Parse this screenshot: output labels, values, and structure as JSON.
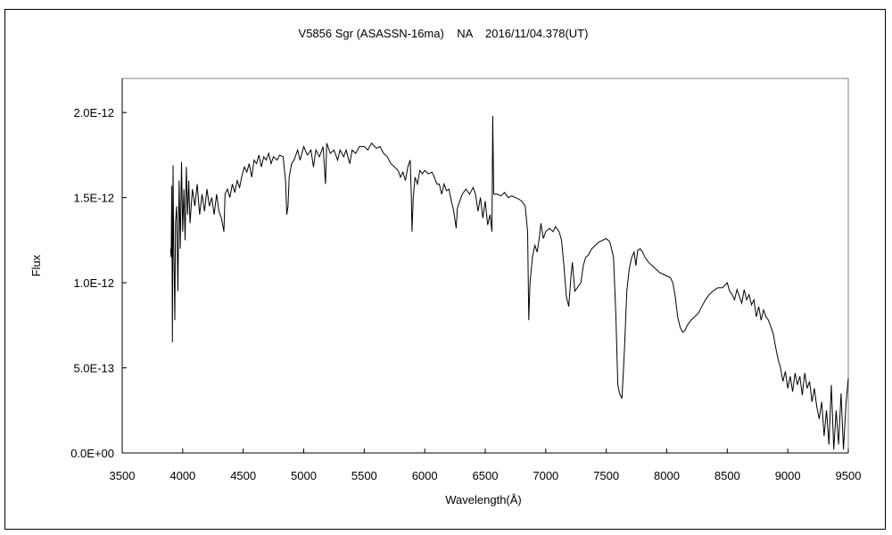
{
  "chart_data": {
    "type": "line",
    "title": "V5856 Sgr (ASASSN-16ma)    NA    2016/11/04.378(UT)",
    "xlabel": "Wavelength(Å)",
    "ylabel": "Flux",
    "xlim": [
      3500,
      9500
    ],
    "ylim": [
      0,
      2.2e-12
    ],
    "x_ticks": [
      3500,
      4000,
      4500,
      5000,
      5500,
      6000,
      6500,
      7000,
      7500,
      8000,
      8500,
      9000,
      9500
    ],
    "x_tick_labels": [
      "3500",
      "4000",
      "4500",
      "5000",
      "5500",
      "6000",
      "6500",
      "7000",
      "7500",
      "8000",
      "8500",
      "9000",
      "9500"
    ],
    "y_ticks": [
      0,
      5e-13,
      1e-12,
      1.5e-12,
      2e-12
    ],
    "y_tick_labels": [
      "0.0E+00",
      "5.0E-13",
      "1.0E-12",
      "1.5E-12",
      "2.0E-12"
    ],
    "grid": false,
    "legend": "none",
    "line_color": "#000000",
    "series": [
      {
        "points": [
          [
            3900,
            1.2e-12
          ],
          [
            3905,
            1.15e-12
          ],
          [
            3910,
            1.57e-12
          ],
          [
            3915,
            6.5e-13
          ],
          [
            3920,
            1.69e-12
          ],
          [
            3925,
            1.25e-12
          ],
          [
            3930,
            1.05e-12
          ],
          [
            3935,
            7.8e-13
          ],
          [
            3940,
            1.35e-12
          ],
          [
            3950,
            1.45e-12
          ],
          [
            3960,
            9.5e-13
          ],
          [
            3970,
            1.6e-12
          ],
          [
            3980,
            1.2e-12
          ],
          [
            3990,
            1.71e-12
          ],
          [
            4000,
            1.3e-12
          ],
          [
            4010,
            1.55e-12
          ],
          [
            4020,
            1.25e-12
          ],
          [
            4030,
            1.68e-12
          ],
          [
            4040,
            1.4e-12
          ],
          [
            4050,
            1.6e-12
          ],
          [
            4060,
            1.35e-12
          ],
          [
            4080,
            1.55e-12
          ],
          [
            4100,
            1.45e-12
          ],
          [
            4120,
            1.58e-12
          ],
          [
            4140,
            1.4e-12
          ],
          [
            4160,
            1.52e-12
          ],
          [
            4180,
            1.42e-12
          ],
          [
            4200,
            1.55e-12
          ],
          [
            4220,
            1.45e-12
          ],
          [
            4240,
            1.5e-12
          ],
          [
            4260,
            1.4e-12
          ],
          [
            4280,
            1.52e-12
          ],
          [
            4300,
            1.42e-12
          ],
          [
            4320,
            1.38e-12
          ],
          [
            4340,
            1.3e-12
          ],
          [
            4350,
            1.52e-12
          ],
          [
            4370,
            1.55e-12
          ],
          [
            4390,
            1.5e-12
          ],
          [
            4410,
            1.58e-12
          ],
          [
            4430,
            1.53e-12
          ],
          [
            4450,
            1.6e-12
          ],
          [
            4470,
            1.56e-12
          ],
          [
            4490,
            1.63e-12
          ],
          [
            4510,
            1.68e-12
          ],
          [
            4530,
            1.65e-12
          ],
          [
            4550,
            1.7e-12
          ],
          [
            4570,
            1.62e-12
          ],
          [
            4590,
            1.72e-12
          ],
          [
            4610,
            1.7e-12
          ],
          [
            4630,
            1.75e-12
          ],
          [
            4650,
            1.68e-12
          ],
          [
            4670,
            1.74e-12
          ],
          [
            4690,
            1.72e-12
          ],
          [
            4710,
            1.76e-12
          ],
          [
            4730,
            1.7e-12
          ],
          [
            4750,
            1.74e-12
          ],
          [
            4780,
            1.72e-12
          ],
          [
            4800,
            1.75e-12
          ],
          [
            4830,
            1.74e-12
          ],
          [
            4850,
            1.6e-12
          ],
          [
            4860,
            1.4e-12
          ],
          [
            4870,
            1.45e-12
          ],
          [
            4880,
            1.62e-12
          ],
          [
            4900,
            1.7e-12
          ],
          [
            4920,
            1.72e-12
          ],
          [
            4950,
            1.78e-12
          ],
          [
            4970,
            1.72e-12
          ],
          [
            5000,
            1.8e-12
          ],
          [
            5030,
            1.75e-12
          ],
          [
            5060,
            1.78e-12
          ],
          [
            5080,
            1.68e-12
          ],
          [
            5100,
            1.78e-12
          ],
          [
            5130,
            1.74e-12
          ],
          [
            5160,
            1.8e-12
          ],
          [
            5180,
            1.58e-12
          ],
          [
            5190,
            1.82e-12
          ],
          [
            5220,
            1.76e-12
          ],
          [
            5250,
            1.78e-12
          ],
          [
            5280,
            1.72e-12
          ],
          [
            5300,
            1.78e-12
          ],
          [
            5330,
            1.74e-12
          ],
          [
            5350,
            1.78e-12
          ],
          [
            5380,
            1.7e-12
          ],
          [
            5400,
            1.78e-12
          ],
          [
            5430,
            1.76e-12
          ],
          [
            5460,
            1.8e-12
          ],
          [
            5500,
            1.8e-12
          ],
          [
            5530,
            1.78e-12
          ],
          [
            5560,
            1.82e-12
          ],
          [
            5600,
            1.79e-12
          ],
          [
            5630,
            1.8e-12
          ],
          [
            5660,
            1.76e-12
          ],
          [
            5690,
            1.74e-12
          ],
          [
            5720,
            1.7e-12
          ],
          [
            5750,
            1.68e-12
          ],
          [
            5780,
            1.66e-12
          ],
          [
            5800,
            1.62e-12
          ],
          [
            5820,
            1.65e-12
          ],
          [
            5840,
            1.6e-12
          ],
          [
            5860,
            1.68e-12
          ],
          [
            5880,
            1.72e-12
          ],
          [
            5890,
            1.5e-12
          ],
          [
            5895,
            1.3e-12
          ],
          [
            5905,
            1.5e-12
          ],
          [
            5920,
            1.62e-12
          ],
          [
            5940,
            1.58e-12
          ],
          [
            5960,
            1.66e-12
          ],
          [
            5980,
            1.64e-12
          ],
          [
            6000,
            1.66e-12
          ],
          [
            6030,
            1.64e-12
          ],
          [
            6060,
            1.65e-12
          ],
          [
            6080,
            1.62e-12
          ],
          [
            6100,
            1.58e-12
          ],
          [
            6120,
            1.58e-12
          ],
          [
            6140,
            1.52e-12
          ],
          [
            6160,
            1.58e-12
          ],
          [
            6180,
            1.54e-12
          ],
          [
            6200,
            1.55e-12
          ],
          [
            6220,
            1.48e-12
          ],
          [
            6240,
            1.42e-12
          ],
          [
            6260,
            1.32e-12
          ],
          [
            6270,
            1.44e-12
          ],
          [
            6290,
            1.48e-12
          ],
          [
            6310,
            1.52e-12
          ],
          [
            6340,
            1.55e-12
          ],
          [
            6370,
            1.52e-12
          ],
          [
            6400,
            1.56e-12
          ],
          [
            6420,
            1.52e-12
          ],
          [
            6440,
            1.42e-12
          ],
          [
            6460,
            1.5e-12
          ],
          [
            6480,
            1.38e-12
          ],
          [
            6500,
            1.48e-12
          ],
          [
            6520,
            1.34e-12
          ],
          [
            6540,
            1.4e-12
          ],
          [
            6555,
            1.3e-12
          ],
          [
            6562,
            1.98e-12
          ],
          [
            6570,
            1.52e-12
          ],
          [
            6600,
            1.52e-12
          ],
          [
            6630,
            1.51e-12
          ],
          [
            6660,
            1.53e-12
          ],
          [
            6690,
            1.5e-12
          ],
          [
            6720,
            1.51e-12
          ],
          [
            6750,
            1.5e-12
          ],
          [
            6780,
            1.49e-12
          ],
          [
            6800,
            1.48e-12
          ],
          [
            6830,
            1.45e-12
          ],
          [
            6850,
            1.3e-12
          ],
          [
            6860,
            7.8e-13
          ],
          [
            6870,
            1e-12
          ],
          [
            6890,
            1.15e-12
          ],
          [
            6910,
            1.22e-12
          ],
          [
            6930,
            1.18e-12
          ],
          [
            6950,
            1.28e-12
          ],
          [
            6960,
            1.35e-12
          ],
          [
            6980,
            1.26e-12
          ],
          [
            7000,
            1.3e-12
          ],
          [
            7030,
            1.32e-12
          ],
          [
            7060,
            1.3e-12
          ],
          [
            7080,
            1.33e-12
          ],
          [
            7110,
            1.3e-12
          ],
          [
            7130,
            1.25e-12
          ],
          [
            7150,
            1.1e-12
          ],
          [
            7170,
            9.2e-13
          ],
          [
            7190,
            8.6e-13
          ],
          [
            7210,
            1.05e-12
          ],
          [
            7220,
            1.12e-12
          ],
          [
            7240,
            9.5e-13
          ],
          [
            7260,
            9.7e-13
          ],
          [
            7290,
            1e-12
          ],
          [
            7310,
            1.1e-12
          ],
          [
            7330,
            1.15e-12
          ],
          [
            7350,
            1.16e-12
          ],
          [
            7380,
            1.2e-12
          ],
          [
            7410,
            1.22e-12
          ],
          [
            7440,
            1.24e-12
          ],
          [
            7470,
            1.25e-12
          ],
          [
            7500,
            1.26e-12
          ],
          [
            7530,
            1.24e-12
          ],
          [
            7560,
            1.15e-12
          ],
          [
            7580,
            8e-13
          ],
          [
            7595,
            4e-13
          ],
          [
            7610,
            3.5e-13
          ],
          [
            7630,
            3.2e-13
          ],
          [
            7650,
            6e-13
          ],
          [
            7670,
            9.5e-13
          ],
          [
            7690,
            1.08e-12
          ],
          [
            7710,
            1.15e-12
          ],
          [
            7730,
            1.18e-12
          ],
          [
            7745,
            1.1e-12
          ],
          [
            7760,
            1.19e-12
          ],
          [
            7780,
            1.2e-12
          ],
          [
            7800,
            1.18e-12
          ],
          [
            7820,
            1.15e-12
          ],
          [
            7850,
            1.12e-12
          ],
          [
            7880,
            1.1e-12
          ],
          [
            7910,
            1.08e-12
          ],
          [
            7940,
            1.06e-12
          ],
          [
            7970,
            1.05e-12
          ],
          [
            8000,
            1.04e-12
          ],
          [
            8030,
            1.03e-12
          ],
          [
            8050,
            1e-12
          ],
          [
            8070,
            9.2e-13
          ],
          [
            8090,
            8e-13
          ],
          [
            8110,
            7.4e-13
          ],
          [
            8130,
            7.1e-13
          ],
          [
            8150,
            7.2e-13
          ],
          [
            8170,
            7.5e-13
          ],
          [
            8200,
            7.8e-13
          ],
          [
            8230,
            8e-13
          ],
          [
            8260,
            8.2e-13
          ],
          [
            8290,
            8.6e-13
          ],
          [
            8320,
            9e-13
          ],
          [
            8350,
            9.3e-13
          ],
          [
            8380,
            9.5e-13
          ],
          [
            8420,
            9.7e-13
          ],
          [
            8460,
            9.7e-13
          ],
          [
            8500,
            1e-12
          ],
          [
            8520,
            9.5e-13
          ],
          [
            8540,
            9.3e-13
          ],
          [
            8560,
            9e-13
          ],
          [
            8580,
            9.6e-13
          ],
          [
            8600,
            9.2e-13
          ],
          [
            8620,
            8.8e-13
          ],
          [
            8640,
            9.6e-13
          ],
          [
            8660,
            9e-13
          ],
          [
            8680,
            9.3e-13
          ],
          [
            8700,
            8.7e-13
          ],
          [
            8720,
            9e-13
          ],
          [
            8740,
            8e-13
          ],
          [
            8760,
            8.6e-13
          ],
          [
            8780,
            7.8e-13
          ],
          [
            8800,
            8.4e-13
          ],
          [
            8820,
            8e-13
          ],
          [
            8840,
            7.8e-13
          ],
          [
            8860,
            7.4e-13
          ],
          [
            8880,
            7e-13
          ],
          [
            8900,
            6.2e-13
          ],
          [
            8920,
            5.5e-13
          ],
          [
            8940,
            5e-13
          ],
          [
            8960,
            4.2e-13
          ],
          [
            8980,
            4.8e-13
          ],
          [
            9000,
            3.8e-13
          ],
          [
            9020,
            4.5e-13
          ],
          [
            9040,
            3.6e-13
          ],
          [
            9060,
            4.7e-13
          ],
          [
            9080,
            4e-13
          ],
          [
            9100,
            4.5e-13
          ],
          [
            9120,
            3.4e-13
          ],
          [
            9140,
            4.7e-13
          ],
          [
            9160,
            3.8e-13
          ],
          [
            9180,
            4.2e-13
          ],
          [
            9200,
            3e-13
          ],
          [
            9220,
            3.8e-13
          ],
          [
            9240,
            2.7e-13
          ],
          [
            9260,
            2e-13
          ],
          [
            9280,
            3e-13
          ],
          [
            9300,
            1e-13
          ],
          [
            9320,
            2.5e-13
          ],
          [
            9340,
            5e-14
          ],
          [
            9360,
            4e-13
          ],
          [
            9380,
            2e-14
          ],
          [
            9400,
            2.5e-13
          ],
          [
            9420,
            5e-14
          ],
          [
            9440,
            3.5e-13
          ],
          [
            9460,
            2e-14
          ],
          [
            9480,
            2.8e-13
          ],
          [
            9500,
            4.4e-13
          ]
        ]
      }
    ]
  }
}
